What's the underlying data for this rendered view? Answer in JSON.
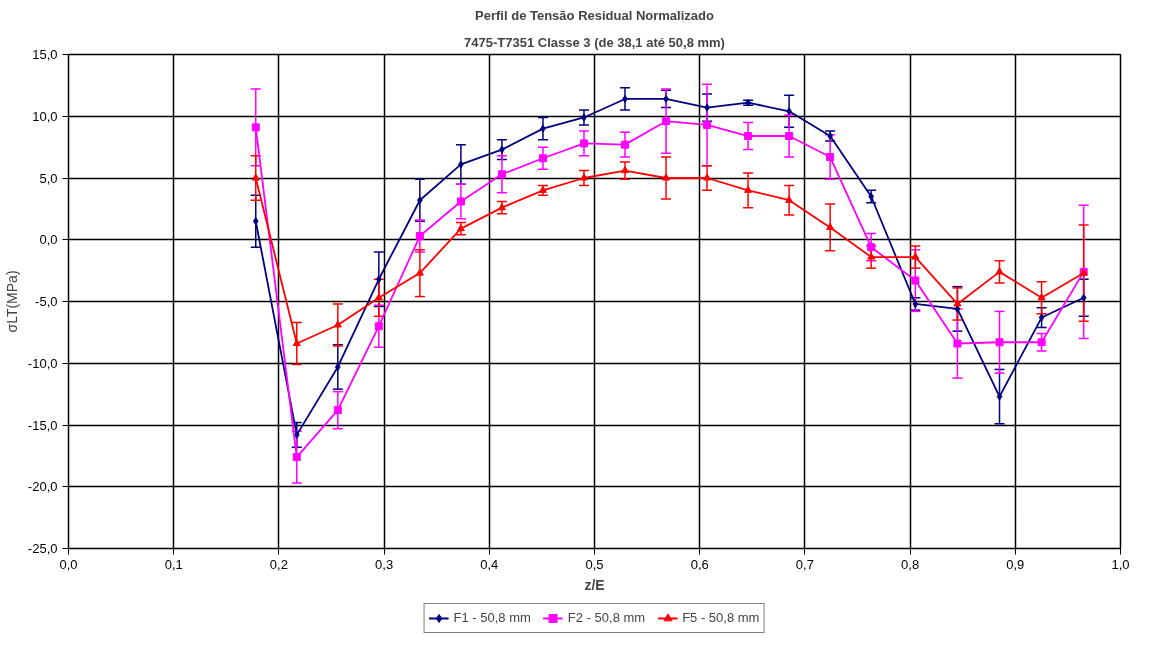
{
  "chart_data": {
    "type": "line",
    "title": "Perfil de Tensão Residual Normalizado",
    "subtitle": "7475-T7351 Classe 3 (de 38,1 até 50,8 mm)",
    "xlabel": "z/E",
    "ylabel": "σLT(MPa)",
    "x": [
      0.178,
      0.217,
      0.256,
      0.295,
      0.334,
      0.373,
      0.412,
      0.451,
      0.49,
      0.529,
      0.568,
      0.607,
      0.646,
      0.685,
      0.724,
      0.763,
      0.805,
      0.845,
      0.885,
      0.925,
      0.965
    ],
    "series": [
      {
        "name": "F1 - 50,8 mm",
        "color": "#000080",
        "marker": "diamond",
        "values": [
          1.5,
          -15.8,
          -10.3,
          -3.2,
          3.2,
          6.1,
          7.3,
          9.0,
          9.9,
          11.4,
          11.4,
          10.7,
          11.1,
          10.4,
          8.4,
          3.5,
          -5.2,
          -5.6,
          -12.7,
          -6.3,
          -4.7
        ],
        "errors": [
          2.1,
          1.0,
          1.8,
          2.2,
          1.7,
          1.6,
          0.8,
          0.9,
          0.6,
          0.9,
          0.7,
          1.1,
          0.2,
          1.3,
          0.4,
          0.5,
          0.5,
          1.8,
          2.2,
          0.8,
          1.5
        ]
      },
      {
        "name": "F2 - 50,8 mm",
        "color": "#ff00ff",
        "marker": "square",
        "values": [
          9.1,
          -17.6,
          -13.8,
          -7.0,
          0.3,
          3.1,
          5.3,
          6.6,
          7.8,
          7.7,
          9.6,
          9.3,
          8.4,
          8.4,
          6.7,
          -0.6,
          -3.3,
          -8.4,
          -8.3,
          -8.3,
          -2.6
        ],
        "errors": [
          3.1,
          2.1,
          1.5,
          1.7,
          1.3,
          1.4,
          1.5,
          0.9,
          1.0,
          1.0,
          2.6,
          3.3,
          1.1,
          1.7,
          1.8,
          1.1,
          2.5,
          2.8,
          2.5,
          0.7,
          5.4
        ]
      },
      {
        "name": "F5 - 50,8 mm",
        "color": "#ff0000",
        "marker": "triangle",
        "values": [
          5.0,
          -8.4,
          -6.9,
          -4.7,
          -2.7,
          0.9,
          2.6,
          4.0,
          5.0,
          5.6,
          5.0,
          5.0,
          4.0,
          3.2,
          1.0,
          -1.4,
          -1.4,
          -5.2,
          -2.6,
          -4.7,
          -2.7
        ],
        "errors": [
          1.8,
          1.7,
          1.7,
          1.5,
          1.9,
          0.5,
          0.5,
          0.4,
          0.6,
          0.7,
          1.7,
          1.0,
          1.4,
          1.2,
          1.9,
          0.9,
          0.9,
          1.3,
          0.9,
          1.3,
          3.9
        ]
      }
    ],
    "xlim": [
      0,
      1
    ],
    "xticks": [
      {
        "value": 0,
        "label": "0,0"
      },
      {
        "value": 0.1,
        "label": "0,1"
      },
      {
        "value": 0.2,
        "label": "0,2"
      },
      {
        "value": 0.3,
        "label": "0,3"
      },
      {
        "value": 0.4,
        "label": "0,4"
      },
      {
        "value": 0.5,
        "label": "0,5"
      },
      {
        "value": 0.6,
        "label": "0,6"
      },
      {
        "value": 0.7,
        "label": "0,7"
      },
      {
        "value": 0.8,
        "label": "0,8"
      },
      {
        "value": 0.9,
        "label": "0,9"
      },
      {
        "value": 1,
        "label": "1,0"
      }
    ],
    "ylim": [
      -25,
      15
    ],
    "yticks": [
      {
        "value": -25,
        "label": "-25,0"
      },
      {
        "value": -20,
        "label": "-20,0"
      },
      {
        "value": -15,
        "label": "-15,0"
      },
      {
        "value": -10,
        "label": "-10,0"
      },
      {
        "value": -5,
        "label": "-5,0"
      },
      {
        "value": 0,
        "label": "0,0"
      },
      {
        "value": 5,
        "label": "5,0"
      },
      {
        "value": 10,
        "label": "10,0"
      },
      {
        "value": 15,
        "label": "15,0"
      }
    ],
    "grid": true,
    "legend": "bottom",
    "line_style": "solid"
  }
}
